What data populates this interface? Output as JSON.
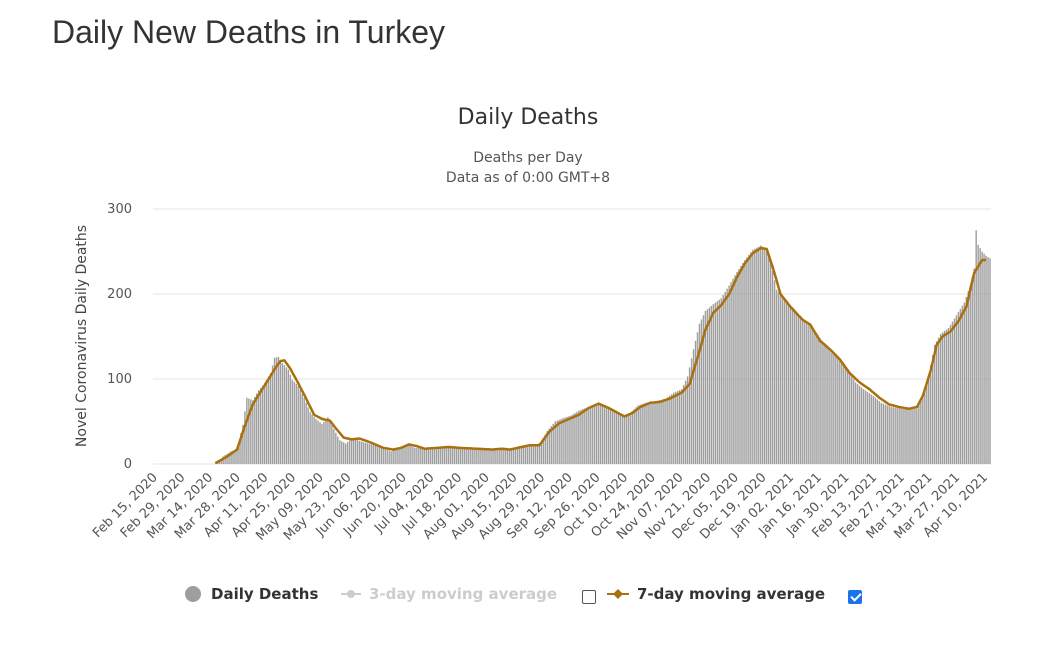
{
  "page": {
    "title": "Daily New Deaths in Turkey"
  },
  "colors": {
    "bars": "#9e9e9e",
    "ma7": "#a8700e",
    "ma3": "#cccccc",
    "grid": "#e6e6e6",
    "checkbox_on": "#1a73e8"
  },
  "legend": {
    "daily": "Daily Deaths",
    "ma3": "3-day moving average",
    "ma7": "7-day moving average",
    "ma3_checked": false,
    "ma7_checked": true
  },
  "chart_data": {
    "type": "bar",
    "title": "Daily Deaths",
    "subtitle_lines": [
      "Deaths per Day",
      "Data as of 0:00 GMT+8"
    ],
    "ylabel": "Novel Coronavirus Daily Deaths",
    "ylim": [
      0,
      300
    ],
    "yticks": [
      0,
      100,
      200,
      300
    ],
    "grid": true,
    "legend_position": "bottom",
    "x_start": "Feb 15, 2020",
    "x_end": "Apr 13, 2021",
    "xtick_labels": [
      "Feb 15, 2020",
      "Feb 29, 2020",
      "Mar 14, 2020",
      "Mar 28, 2020",
      "Apr 11, 2020",
      "Apr 25, 2020",
      "May 09, 2020",
      "May 23, 2020",
      "Jun 06, 2020",
      "Jun 20, 2020",
      "Jul 04, 2020",
      "Jul 18, 2020",
      "Aug 01, 2020",
      "Aug 15, 2020",
      "Aug 29, 2020",
      "Sep 12, 2020",
      "Sep 26, 2020",
      "Oct 10, 2020",
      "Oct 24, 2020",
      "Nov 07, 2020",
      "Nov 21, 2020",
      "Dec 05, 2020",
      "Dec 19, 2020",
      "Jan 02, 2021",
      "Jan 16, 2021",
      "Jan 30, 2021",
      "Feb 13, 2021",
      "Feb 27, 2021",
      "Mar 13, 2021",
      "Mar 27, 2021",
      "Apr 10, 2021"
    ],
    "series": [
      {
        "name": "Daily Deaths",
        "knots": [
          [
            "Feb 15, 2020",
            0
          ],
          [
            "Mar 16, 2020",
            0
          ],
          [
            "Mar 18, 2020",
            1
          ],
          [
            "Mar 21, 2020",
            9
          ],
          [
            "Mar 25, 2020",
            15
          ],
          [
            "Mar 28, 2020",
            17
          ],
          [
            "Mar 31, 2020",
            46
          ],
          [
            "Apr 02, 2020",
            78
          ],
          [
            "Apr 05, 2020",
            75
          ],
          [
            "Apr 08, 2020",
            87
          ],
          [
            "Apr 11, 2020",
            95
          ],
          [
            "Apr 14, 2020",
            107
          ],
          [
            "Apr 16, 2020",
            125
          ],
          [
            "Apr 18, 2020",
            126
          ],
          [
            "Apr 20, 2020",
            119
          ],
          [
            "Apr 23, 2020",
            111
          ],
          [
            "Apr 25, 2020",
            99
          ],
          [
            "Apr 28, 2020",
            92
          ],
          [
            "May 01, 2020",
            78
          ],
          [
            "May 04, 2020",
            61
          ],
          [
            "May 07, 2020",
            53
          ],
          [
            "May 10, 2020",
            47
          ],
          [
            "May 13, 2020",
            55
          ],
          [
            "May 16, 2020",
            41
          ],
          [
            "May 19, 2020",
            28
          ],
          [
            "May 22, 2020",
            24
          ],
          [
            "May 25, 2020",
            30
          ],
          [
            "May 28, 2020",
            28
          ],
          [
            "Jun 01, 2020",
            25
          ],
          [
            "Jun 06, 2020",
            22
          ],
          [
            "Jun 10, 2020",
            18
          ],
          [
            "Jun 14, 2020",
            15
          ],
          [
            "Jun 18, 2020",
            18
          ],
          [
            "Jun 22, 2020",
            23
          ],
          [
            "Jun 26, 2020",
            19
          ],
          [
            "Jul 01, 2020",
            19
          ],
          [
            "Jul 06, 2020",
            18
          ],
          [
            "Jul 12, 2020",
            20
          ],
          [
            "Jul 18, 2020",
            18
          ],
          [
            "Jul 25, 2020",
            17
          ],
          [
            "Aug 01, 2020",
            17
          ],
          [
            "Aug 06, 2020",
            16
          ],
          [
            "Aug 10, 2020",
            17
          ],
          [
            "Aug 15, 2020",
            19
          ],
          [
            "Aug 20, 2020",
            22
          ],
          [
            "Aug 25, 2020",
            21
          ],
          [
            "Aug 29, 2020",
            26
          ],
          [
            "Sep 01, 2020",
            39
          ],
          [
            "Sep 05, 2020",
            50
          ],
          [
            "Sep 09, 2020",
            54
          ],
          [
            "Sep 13, 2020",
            57
          ],
          [
            "Sep 17, 2020",
            63
          ],
          [
            "Sep 22, 2020",
            67
          ],
          [
            "Sep 27, 2020",
            70
          ],
          [
            "Oct 01, 2020",
            66
          ],
          [
            "Oct 05, 2020",
            62
          ],
          [
            "Oct 09, 2020",
            57
          ],
          [
            "Oct 13, 2020",
            60
          ],
          [
            "Oct 17, 2020",
            69
          ],
          [
            "Oct 21, 2020",
            72
          ],
          [
            "Oct 26, 2020",
            74
          ],
          [
            "Oct 31, 2020",
            77
          ],
          [
            "Nov 04, 2020",
            84
          ],
          [
            "Nov 08, 2020",
            88
          ],
          [
            "Nov 11, 2020",
            103
          ],
          [
            "Nov 14, 2020",
            135
          ],
          [
            "Nov 17, 2020",
            165
          ],
          [
            "Nov 20, 2020",
            180
          ],
          [
            "Nov 24, 2020",
            188
          ],
          [
            "Nov 28, 2020",
            195
          ],
          [
            "Dec 02, 2020",
            210
          ],
          [
            "Dec 06, 2020",
            226
          ],
          [
            "Dec 10, 2020",
            240
          ],
          [
            "Dec 14, 2020",
            252
          ],
          [
            "Dec 18, 2020",
            257
          ],
          [
            "Dec 21, 2020",
            253
          ],
          [
            "Dec 23, 2020",
            238
          ],
          [
            "Dec 26, 2020",
            205
          ],
          [
            "Dec 30, 2020",
            195
          ],
          [
            "Jan 04, 2021",
            182
          ],
          [
            "Jan 09, 2021",
            170
          ],
          [
            "Jan 14, 2021",
            158
          ],
          [
            "Jan 18, 2021",
            145
          ],
          [
            "Jan 22, 2021",
            133
          ],
          [
            "Jan 26, 2021",
            124
          ],
          [
            "Jan 31, 2021",
            110
          ],
          [
            "Feb 04, 2021",
            96
          ],
          [
            "Feb 08, 2021",
            88
          ],
          [
            "Feb 13, 2021",
            80
          ],
          [
            "Feb 17, 2021",
            72
          ],
          [
            "Feb 22, 2021",
            67
          ],
          [
            "Feb 27, 2021",
            65
          ],
          [
            "Mar 03, 2021",
            64
          ],
          [
            "Mar 07, 2021",
            65
          ],
          [
            "Mar 10, 2021",
            80
          ],
          [
            "Mar 13, 2021",
            105
          ],
          [
            "Mar 16, 2021",
            140
          ],
          [
            "Mar 19, 2021",
            153
          ],
          [
            "Mar 23, 2021",
            160
          ],
          [
            "Mar 27, 2021",
            175
          ],
          [
            "Mar 31, 2021",
            190
          ],
          [
            "Apr 03, 2021",
            210
          ],
          [
            "Apr 05, 2021",
            230
          ],
          [
            "Apr 06, 2021",
            275
          ],
          [
            "Apr 07, 2021",
            258
          ],
          [
            "Apr 09, 2021",
            250
          ],
          [
            "Apr 11, 2021",
            245
          ],
          [
            "Apr 13, 2021",
            242
          ]
        ]
      },
      {
        "name": "7-day moving average",
        "knots": [
          [
            "Mar 17, 2020",
            1
          ],
          [
            "Mar 21, 2020",
            6
          ],
          [
            "Mar 25, 2020",
            12
          ],
          [
            "Mar 28, 2020",
            17
          ],
          [
            "Apr 01, 2020",
            45
          ],
          [
            "Apr 05, 2020",
            70
          ],
          [
            "Apr 09, 2020",
            85
          ],
          [
            "Apr 13, 2020",
            100
          ],
          [
            "Apr 17, 2020",
            115
          ],
          [
            "Apr 19, 2020",
            121
          ],
          [
            "Apr 21, 2020",
            122
          ],
          [
            "Apr 24, 2020",
            112
          ],
          [
            "Apr 28, 2020",
            95
          ],
          [
            "May 02, 2020",
            77
          ],
          [
            "May 06, 2020",
            58
          ],
          [
            "May 10, 2020",
            53
          ],
          [
            "May 14, 2020",
            51
          ],
          [
            "May 17, 2020",
            42
          ],
          [
            "May 21, 2020",
            31
          ],
          [
            "May 25, 2020",
            29
          ],
          [
            "May 29, 2020",
            30
          ],
          [
            "Jun 04, 2020",
            25
          ],
          [
            "Jun 10, 2020",
            19
          ],
          [
            "Jun 15, 2020",
            17
          ],
          [
            "Jun 19, 2020",
            19
          ],
          [
            "Jun 23, 2020",
            23
          ],
          [
            "Jun 27, 2020",
            21
          ],
          [
            "Jul 01, 2020",
            18
          ],
          [
            "Jul 07, 2020",
            19
          ],
          [
            "Jul 13, 2020",
            20
          ],
          [
            "Jul 19, 2020",
            19
          ],
          [
            "Jul 27, 2020",
            18
          ],
          [
            "Aug 04, 2020",
            17
          ],
          [
            "Aug 09, 2020",
            18
          ],
          [
            "Aug 13, 2020",
            17
          ],
          [
            "Aug 17, 2020",
            19
          ],
          [
            "Aug 23, 2020",
            22
          ],
          [
            "Aug 28, 2020",
            22
          ],
          [
            "Sep 02, 2020",
            38
          ],
          [
            "Sep 07, 2020",
            48
          ],
          [
            "Sep 12, 2020",
            53
          ],
          [
            "Sep 17, 2020",
            58
          ],
          [
            "Sep 22, 2020",
            66
          ],
          [
            "Sep 27, 2020",
            71
          ],
          [
            "Oct 02, 2020",
            66
          ],
          [
            "Oct 06, 2020",
            61
          ],
          [
            "Oct 10, 2020",
            56
          ],
          [
            "Oct 14, 2020",
            60
          ],
          [
            "Oct 18, 2020",
            67
          ],
          [
            "Oct 23, 2020",
            72
          ],
          [
            "Oct 28, 2020",
            73
          ],
          [
            "Nov 02, 2020",
            77
          ],
          [
            "Nov 08, 2020",
            84
          ],
          [
            "Nov 12, 2020",
            94
          ],
          [
            "Nov 16, 2020",
            125
          ],
          [
            "Nov 20, 2020",
            158
          ],
          [
            "Nov 24, 2020",
            178
          ],
          [
            "Nov 28, 2020",
            187
          ],
          [
            "Dec 02, 2020",
            200
          ],
          [
            "Dec 06, 2020",
            220
          ],
          [
            "Dec 10, 2020",
            236
          ],
          [
            "Dec 14, 2020",
            248
          ],
          [
            "Dec 18, 2020",
            254
          ],
          [
            "Dec 21, 2020",
            253
          ],
          [
            "Dec 24, 2020",
            232
          ],
          [
            "Dec 28, 2020",
            200
          ],
          [
            "Jan 02, 2021",
            185
          ],
          [
            "Jan 08, 2021",
            170
          ],
          [
            "Jan 12, 2021",
            164
          ],
          [
            "Jan 17, 2021",
            145
          ],
          [
            "Jan 22, 2021",
            135
          ],
          [
            "Jan 27, 2021",
            123
          ],
          [
            "Feb 01, 2021",
            107
          ],
          [
            "Feb 06, 2021",
            96
          ],
          [
            "Feb 11, 2021",
            88
          ],
          [
            "Feb 16, 2021",
            78
          ],
          [
            "Feb 21, 2021",
            70
          ],
          [
            "Feb 26, 2021",
            67
          ],
          [
            "Mar 03, 2021",
            65
          ],
          [
            "Mar 07, 2021",
            67
          ],
          [
            "Mar 10, 2021",
            80
          ],
          [
            "Mar 14, 2021",
            110
          ],
          [
            "Mar 17, 2021",
            140
          ],
          [
            "Mar 20, 2021",
            150
          ],
          [
            "Mar 24, 2021",
            156
          ],
          [
            "Mar 28, 2021",
            168
          ],
          [
            "Apr 01, 2021",
            185
          ],
          [
            "Apr 05, 2021",
            225
          ],
          [
            "Apr 09, 2021",
            240
          ],
          [
            "Apr 11, 2021",
            240
          ]
        ]
      }
    ]
  }
}
